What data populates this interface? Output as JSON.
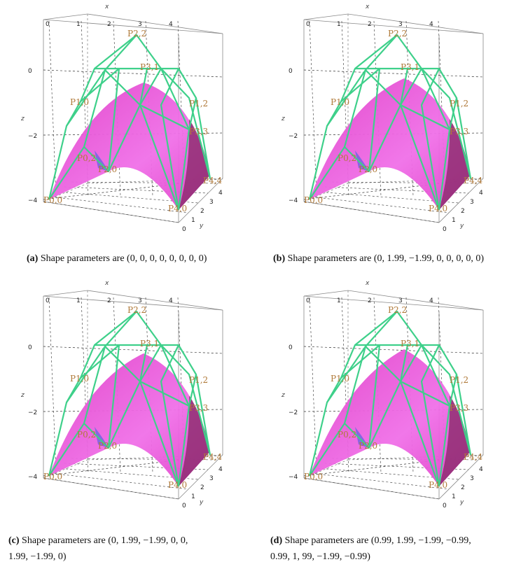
{
  "panels": [
    {
      "id": "a",
      "caption_tag": "(a)",
      "caption_text": "Shape parameters are (0, 0, 0, 0, 0, 0, 0, 0)",
      "caption_line2": ""
    },
    {
      "id": "b",
      "caption_tag": "(b)",
      "caption_text": "Shape parameters are (0, 1.99, −1.99, 0, 0, 0, 0, 0)",
      "caption_line2": ""
    },
    {
      "id": "c",
      "caption_tag": "(c)",
      "caption_text": "Shape parameters are (0, 1.99, −1.99, 0, 0,",
      "caption_line2": "1.99, −1.99, 0)"
    },
    {
      "id": "d",
      "caption_tag": "(d)",
      "caption_text": "Shape parameters are (0.99, 1.99, −1.99, −0.99,",
      "caption_line2": "0.99, 1, 99, −1.99, −0.99)"
    }
  ],
  "axes": {
    "x_label": "x",
    "y_label": "y",
    "z_label": "z",
    "x_ticks": [
      "0",
      "1",
      "2",
      "3",
      "4"
    ],
    "y_ticks": [
      "0",
      "1",
      "2",
      "3",
      "4"
    ],
    "z_ticks": [
      "0",
      "−2",
      "−4"
    ]
  },
  "point_labels": [
    "P0,0",
    "P0,2",
    "P1,0",
    "P2,2",
    "P4,0",
    "P4,4",
    "P1,2",
    "P3,3",
    "P2,0",
    "P3,1"
  ],
  "colors": {
    "surface_main": "#e040c8",
    "surface_light": "#f070e8",
    "surface_dark": "#8a2a6a",
    "surface_blue": "#7a66e0",
    "net": "#3ed08a",
    "label": "#b07a3a",
    "box": "#888888"
  }
}
